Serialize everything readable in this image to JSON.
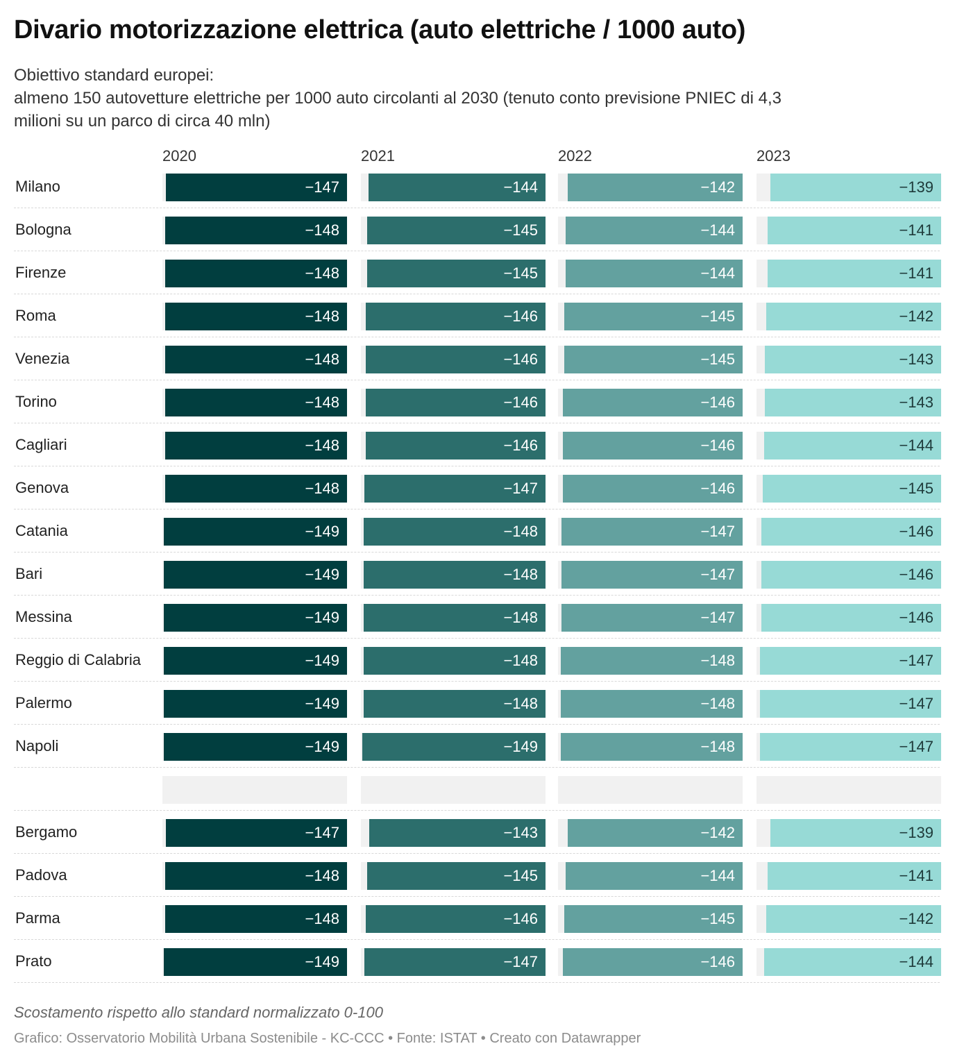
{
  "title": "Divario motorizzazione elettrica (auto elettriche / 1000 auto)",
  "subtitle_lines": [
    "Obiettivo standard europei:",
    "almeno 150 autovetture elettriche per 1000 auto circolanti al 2030 (tenuto conto previsione PNIEC di 4,3",
    "milioni su un parco di circa 40 mln)"
  ],
  "note": "Scostamento rispetto allo standard normalizzato 0-100",
  "source": "Grafico: Osservatorio Mobilità Urbana Sostenibile - KC-CCC • Fonte: ISTAT • Creato con Datawrapper",
  "colors": {
    "2020": "#013e3f",
    "2021": "#2c6e6c",
    "2022": "#63a19f",
    "2023": "#97dad6",
    "track": "#f1f1f1"
  },
  "chart_data": {
    "type": "bar",
    "orientation": "horizontal",
    "columns": [
      "2020",
      "2021",
      "2022",
      "2023"
    ],
    "range": [
      -150,
      0
    ],
    "rows": [
      {
        "city": "Milano",
        "values": [
          -147,
          -144,
          -142,
          -139
        ]
      },
      {
        "city": "Bologna",
        "values": [
          -148,
          -145,
          -144,
          -141
        ]
      },
      {
        "city": "Firenze",
        "values": [
          -148,
          -145,
          -144,
          -141
        ]
      },
      {
        "city": "Roma",
        "values": [
          -148,
          -146,
          -145,
          -142
        ]
      },
      {
        "city": "Venezia",
        "values": [
          -148,
          -146,
          -145,
          -143
        ]
      },
      {
        "city": "Torino",
        "values": [
          -148,
          -146,
          -146,
          -143
        ]
      },
      {
        "city": "Cagliari",
        "values": [
          -148,
          -146,
          -146,
          -144
        ]
      },
      {
        "city": "Genova",
        "values": [
          -148,
          -147,
          -146,
          -145
        ]
      },
      {
        "city": "Catania",
        "values": [
          -149,
          -148,
          -147,
          -146
        ]
      },
      {
        "city": "Bari",
        "values": [
          -149,
          -148,
          -147,
          -146
        ]
      },
      {
        "city": "Messina",
        "values": [
          -149,
          -148,
          -147,
          -146
        ]
      },
      {
        "city": "Reggio di Calabria",
        "values": [
          -149,
          -148,
          -148,
          -147
        ]
      },
      {
        "city": "Palermo",
        "values": [
          -149,
          -148,
          -148,
          -147
        ]
      },
      {
        "city": "Napoli",
        "values": [
          -149,
          -149,
          -148,
          -147
        ]
      },
      {
        "city": "",
        "values": [
          null,
          null,
          null,
          null
        ]
      },
      {
        "city": "Bergamo",
        "values": [
          -147,
          -143,
          -142,
          -139
        ]
      },
      {
        "city": "Padova",
        "values": [
          -148,
          -145,
          -144,
          -141
        ]
      },
      {
        "city": "Parma",
        "values": [
          -148,
          -146,
          -145,
          -142
        ]
      },
      {
        "city": "Prato",
        "values": [
          -149,
          -147,
          -146,
          -144
        ]
      }
    ]
  }
}
